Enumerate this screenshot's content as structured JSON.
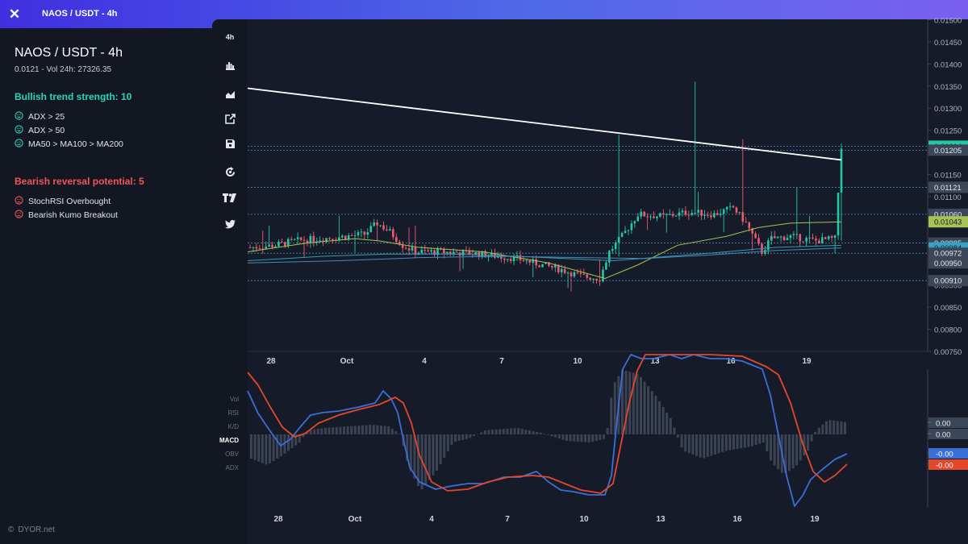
{
  "window": {
    "title": "NAOS / USDT - 4h"
  },
  "sidebar": {
    "title": "NAOS / USDT - 4h",
    "subtitle": "0.0121 - Vol 24h: 27326.35",
    "bullish": {
      "heading": "Bullish trend strength: 10",
      "color": "#2bd5b5",
      "items": [
        "ADX > 25",
        "ADX > 50",
        "MA50 > MA100 > MA200"
      ]
    },
    "bearish": {
      "heading": "Bearish reversal potential: 5",
      "color": "#f2555a",
      "items": [
        "StochRSI Overbought",
        "Bearish Kumo Breakout"
      ]
    },
    "footer": "DYOR.net"
  },
  "toolbar": {
    "timeframe": "4h",
    "icons": [
      "bar-chart-icon",
      "area-chart-icon",
      "external-link-icon",
      "save-icon",
      "refresh-icon",
      "tradingview-icon",
      "twitter-icon"
    ]
  },
  "indicator_labels": [
    "Vol",
    "RSI",
    "K/D",
    "MACD",
    "OBV",
    "ADX"
  ],
  "indicator_active": "MACD",
  "colors": {
    "up": "#26c6a6",
    "down": "#ef5a6f",
    "trendline": "#ffffff",
    "ma50": "#a8c256",
    "ma100": "#2f9fb0",
    "ma200": "#4a87c0",
    "macd": "#3a6fd8",
    "signal": "#e4472a",
    "hist": "#3c4454"
  },
  "chart_data": {
    "type": "candlestick",
    "symbol": "NAOS / USDT - 4h",
    "y_ticks": [
      "0.01500",
      "0.01450",
      "0.01400",
      "0.01350",
      "0.01300",
      "0.01250",
      "0.01200",
      "0.01150",
      "0.01100",
      "0.01050",
      "0.01000",
      "0.00950",
      "0.00900",
      "0.00850",
      "0.00800",
      "0.00750"
    ],
    "ylim": [
      0.0075,
      0.0151
    ],
    "x_ticks": [
      "28",
      "Oct",
      "4",
      "7",
      "10",
      "13",
      "16",
      "19"
    ],
    "price_labels": [
      {
        "value": 0.01214,
        "text": "0.01214",
        "style": "up"
      },
      {
        "value": 0.01205,
        "text": "0.01205",
        "style": "dark"
      },
      {
        "value": 0.01121,
        "text": "0.01121",
        "style": "dark"
      },
      {
        "value": 0.0106,
        "text": "0.01060",
        "style": "dark"
      },
      {
        "value": 0.01043,
        "text": "0.01043",
        "style": "ma"
      },
      {
        "value": 0.00995,
        "text": "0.00995",
        "style": "dark"
      },
      {
        "value": 0.00984,
        "text": "0.00984",
        "style": "blue"
      },
      {
        "value": 0.00972,
        "text": "0.00972",
        "style": "dark"
      },
      {
        "value": 0.0095,
        "text": "0.00950",
        "style": "dark"
      },
      {
        "value": 0.0091,
        "text": "0.00910",
        "style": "dark"
      }
    ],
    "hlines": [
      0.01214,
      0.01205,
      0.01121,
      0.0106,
      0.00995,
      0.00972,
      0.0091
    ],
    "trendline": {
      "from": [
        0,
        0.01345
      ],
      "to": [
        1,
        0.0118
      ]
    },
    "macd_labels": [
      {
        "text": "0.00",
        "style": "dark"
      },
      {
        "text": "0.00",
        "style": "dark"
      },
      {
        "text": "-0.00",
        "style": "blue"
      },
      {
        "text": "-0.00",
        "style": "red"
      }
    ]
  }
}
